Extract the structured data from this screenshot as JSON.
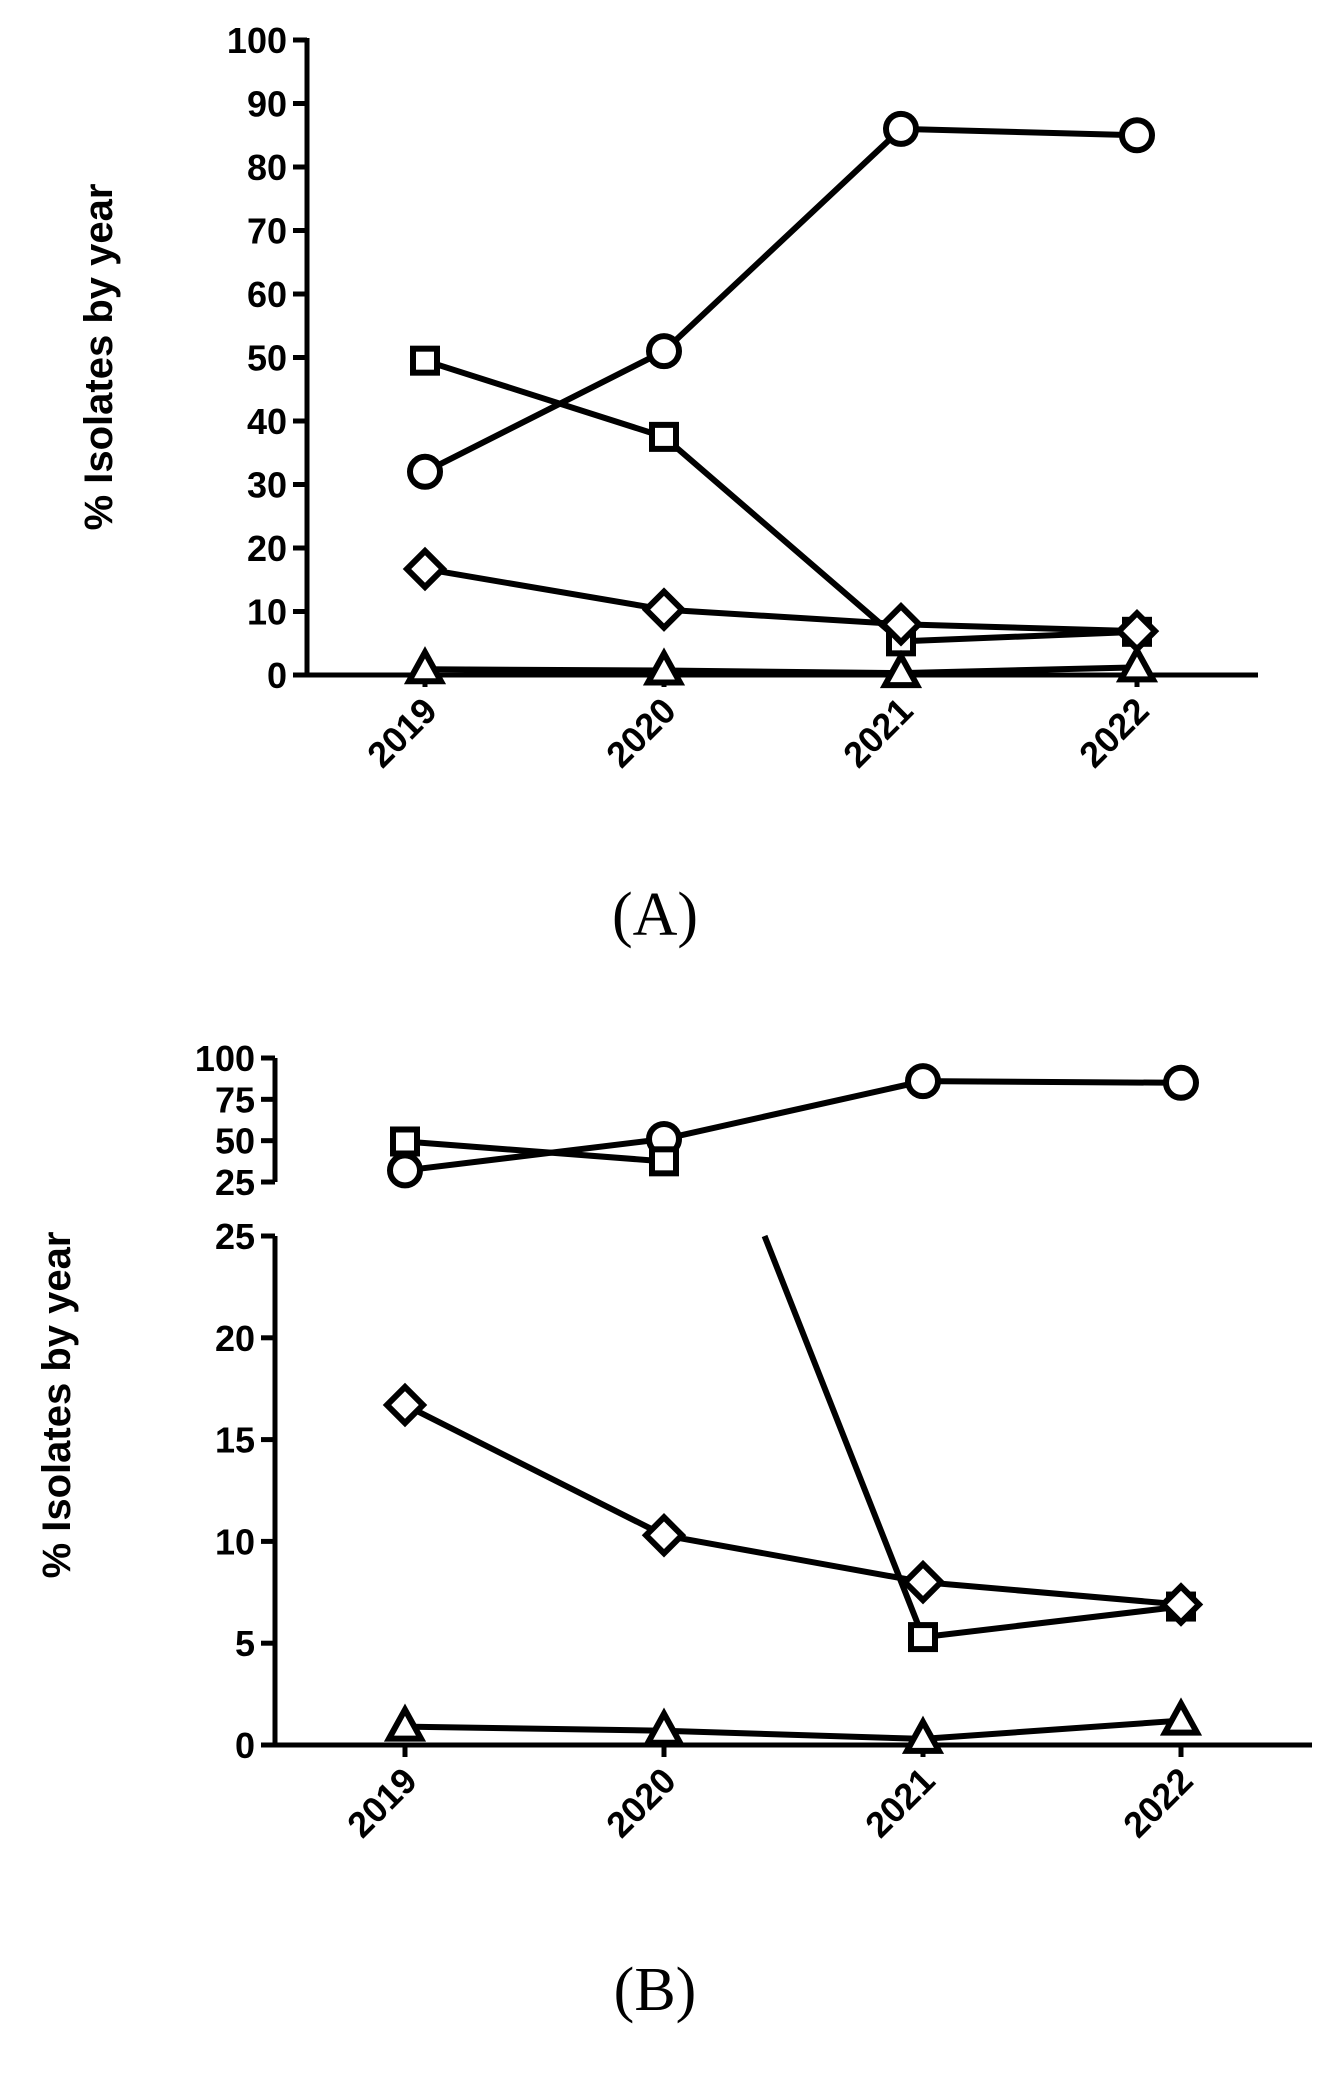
{
  "chart_data": [
    {
      "type": "line",
      "panel_label": "(A)",
      "ylabel": "% Isolates by year",
      "xlabel": "",
      "categories": [
        "2019",
        "2020",
        "2021",
        "2022"
      ],
      "ylim": [
        0,
        100
      ],
      "yticks": [
        0,
        10,
        20,
        30,
        40,
        50,
        60,
        70,
        80,
        90,
        100
      ],
      "series": [
        {
          "name": "circle",
          "marker": "circle",
          "values": [
            32,
            51,
            86,
            85
          ]
        },
        {
          "name": "square",
          "marker": "square",
          "values": [
            49.5,
            37.5,
            5.3,
            6.8
          ]
        },
        {
          "name": "diamond",
          "marker": "diamond",
          "values": [
            16.7,
            10.3,
            8,
            6.9
          ]
        },
        {
          "name": "triangle",
          "marker": "triangle",
          "values": [
            0.9,
            0.7,
            0.3,
            1.2
          ]
        }
      ]
    },
    {
      "type": "line",
      "panel_label": "(B)",
      "ylabel": "% Isolates by year",
      "xlabel": "",
      "categories": [
        "2019",
        "2020",
        "2021",
        "2022"
      ],
      "broken_axis": true,
      "ylim_upper": [
        25,
        100
      ],
      "yticks_upper": [
        25,
        50,
        75,
        100
      ],
      "ylim_lower": [
        0,
        25
      ],
      "yticks_lower": [
        0,
        5,
        10,
        15,
        20,
        25
      ],
      "series": [
        {
          "name": "circle",
          "marker": "circle",
          "values": [
            32,
            51,
            86,
            85
          ]
        },
        {
          "name": "square",
          "marker": "square",
          "values": [
            49.5,
            37.5,
            5.3,
            6.8
          ]
        },
        {
          "name": "diamond",
          "marker": "diamond",
          "values": [
            16.7,
            10.3,
            8,
            6.9
          ]
        },
        {
          "name": "triangle",
          "marker": "triangle",
          "values": [
            0.9,
            0.7,
            0.3,
            1.2
          ]
        }
      ]
    }
  ]
}
